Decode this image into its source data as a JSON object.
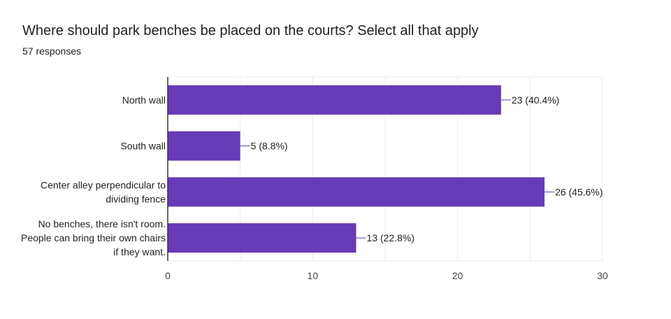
{
  "title": "Where should park benches be placed on the courts?  Select all that apply",
  "subtitle": "57 responses",
  "colors": {
    "bar": "#673ab7",
    "grid": "#ebebeb",
    "axis": "#333333"
  },
  "chart_data": {
    "type": "bar",
    "orientation": "horizontal",
    "categories": [
      [
        "North wall"
      ],
      [
        "South wall"
      ],
      [
        "Center alley perpendicular to",
        "dividing fence"
      ],
      [
        "No benches, there isn't room.",
        "People can bring their own chairs",
        "if they want."
      ]
    ],
    "values": [
      23,
      5,
      26,
      13
    ],
    "data_labels": [
      "23 (40.4%)",
      "5 (8.8%)",
      "26 (45.6%)",
      "13 (22.8%)"
    ],
    "xlim": [
      0,
      30
    ],
    "x_ticks": [
      0,
      10,
      20,
      30
    ],
    "grid": true
  }
}
